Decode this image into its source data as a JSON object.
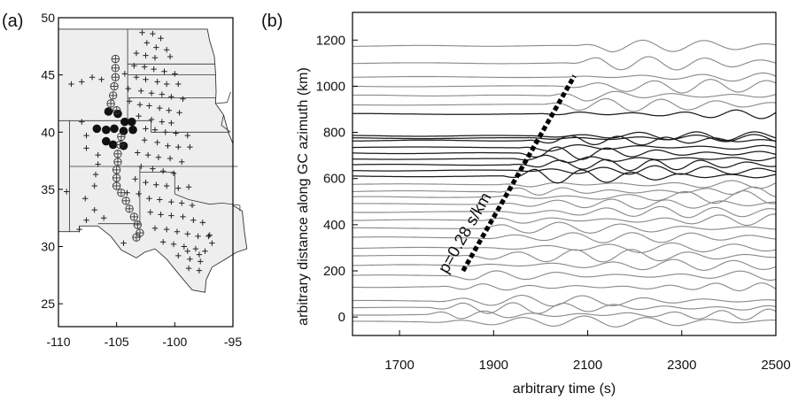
{
  "chart_data": [
    {
      "panel_label": "(a)",
      "type": "scatter",
      "xlim": [
        -110,
        -95
      ],
      "ylim": [
        23,
        50
      ],
      "x_ticks": [
        -110,
        -105,
        -100,
        -95
      ],
      "y_ticks": [
        25,
        30,
        35,
        40,
        45,
        50
      ],
      "tick_labels_x": [
        "-110",
        "-105",
        "-100",
        "-95"
      ],
      "tick_labels_y": [
        "25",
        "30",
        "35",
        "40",
        "45",
        "50"
      ],
      "colors": {
        "land": "#eeeeee",
        "border": "#333333",
        "marker": "#111111"
      },
      "series": [
        {
          "marker": "filled-circle",
          "points": [
            [
              -105.7,
              41.8
            ],
            [
              -104.9,
              41.6
            ],
            [
              -104.3,
              40.9
            ],
            [
              -103.7,
              40.9
            ],
            [
              -106.7,
              40.3
            ],
            [
              -105.9,
              40.2
            ],
            [
              -105.2,
              40.3
            ],
            [
              -104.4,
              40.1
            ],
            [
              -103.6,
              40.2
            ],
            [
              -105.9,
              39.2
            ],
            [
              -105.3,
              38.9
            ],
            [
              -104.4,
              38.8
            ]
          ]
        },
        {
          "marker": "circled-plus",
          "points": [
            [
              -105.1,
              46.4
            ],
            [
              -105.1,
              45.6
            ],
            [
              -105.1,
              44.8
            ],
            [
              -105.2,
              44.0
            ],
            [
              -105.3,
              43.2
            ],
            [
              -105.5,
              42.5
            ],
            [
              -105.0,
              41.9
            ],
            [
              -104.6,
              39.6
            ],
            [
              -104.7,
              38.9
            ],
            [
              -104.9,
              38.1
            ],
            [
              -104.9,
              37.4
            ],
            [
              -105.0,
              36.7
            ],
            [
              -105.0,
              36.0
            ],
            [
              -105.0,
              35.3
            ],
            [
              -104.6,
              34.7
            ],
            [
              -104.2,
              34.0
            ],
            [
              -103.9,
              33.3
            ],
            [
              -103.5,
              32.6
            ],
            [
              -103.2,
              31.9
            ],
            [
              -103.0,
              31.2
            ],
            [
              -103.3,
              30.8
            ]
          ]
        },
        {
          "marker": "plus",
          "points": [
            [
              -102.8,
              48.7
            ],
            [
              -101.9,
              48.6
            ],
            [
              -101.2,
              48.2
            ],
            [
              -102.4,
              47.8
            ],
            [
              -101.6,
              47.4
            ],
            [
              -100.7,
              47.2
            ],
            [
              -103.3,
              46.9
            ],
            [
              -102.5,
              46.7
            ],
            [
              -101.7,
              46.5
            ],
            [
              -100.4,
              46.6
            ],
            [
              -103.5,
              45.8
            ],
            [
              -102.6,
              45.7
            ],
            [
              -101.8,
              45.5
            ],
            [
              -100.9,
              45.3
            ],
            [
              -100.0,
              45.1
            ],
            [
              -104.3,
              45.1
            ],
            [
              -103.3,
              44.8
            ],
            [
              -102.5,
              44.6
            ],
            [
              -101.5,
              44.4
            ],
            [
              -100.7,
              44.2
            ],
            [
              -99.7,
              44.2
            ],
            [
              -104.0,
              43.8
            ],
            [
              -102.9,
              43.6
            ],
            [
              -102.0,
              43.4
            ],
            [
              -101.1,
              43.3
            ],
            [
              -100.3,
              43.1
            ],
            [
              -99.3,
              42.9
            ],
            [
              -103.9,
              42.7
            ],
            [
              -103.0,
              42.4
            ],
            [
              -102.2,
              42.3
            ],
            [
              -101.3,
              42.1
            ],
            [
              -100.5,
              41.9
            ],
            [
              -99.6,
              41.7
            ],
            [
              -103.1,
              41.4
            ],
            [
              -102.0,
              41.1
            ],
            [
              -101.1,
              40.9
            ],
            [
              -100.3,
              40.8
            ],
            [
              -102.5,
              40.3
            ],
            [
              -101.7,
              40.2
            ],
            [
              -100.8,
              40.0
            ],
            [
              -99.9,
              39.9
            ],
            [
              -98.9,
              39.7
            ],
            [
              -102.6,
              39.3
            ],
            [
              -101.5,
              39.1
            ],
            [
              -100.6,
              38.8
            ],
            [
              -99.7,
              38.7
            ],
            [
              -98.7,
              38.7
            ],
            [
              -103.2,
              38.2
            ],
            [
              -102.3,
              38.0
            ],
            [
              -101.4,
              37.8
            ],
            [
              -100.4,
              37.7
            ],
            [
              -99.4,
              37.4
            ],
            [
              -102.9,
              37.0
            ],
            [
              -101.9,
              36.8
            ],
            [
              -101.0,
              36.6
            ],
            [
              -100.1,
              36.4
            ],
            [
              -103.4,
              35.9
            ],
            [
              -102.5,
              35.6
            ],
            [
              -101.6,
              35.4
            ],
            [
              -100.7,
              35.3
            ],
            [
              -99.7,
              35.1
            ],
            [
              -98.8,
              35.2
            ],
            [
              -104.1,
              34.7
            ],
            [
              -103.1,
              34.6
            ],
            [
              -102.2,
              34.2
            ],
            [
              -101.3,
              34.1
            ],
            [
              -100.3,
              33.9
            ],
            [
              -99.4,
              33.8
            ],
            [
              -98.5,
              33.6
            ],
            [
              -102.1,
              33.0
            ],
            [
              -101.2,
              32.8
            ],
            [
              -100.3,
              32.7
            ],
            [
              -99.3,
              32.6
            ],
            [
              -98.4,
              32.3
            ],
            [
              -97.6,
              32.1
            ],
            [
              -101.7,
              31.6
            ],
            [
              -100.7,
              31.5
            ],
            [
              -99.8,
              31.3
            ],
            [
              -98.9,
              31.1
            ],
            [
              -98.0,
              30.9
            ],
            [
              -97.1,
              30.9
            ],
            [
              -101.0,
              30.4
            ],
            [
              -100.1,
              30.2
            ],
            [
              -99.2,
              30.0
            ],
            [
              -98.2,
              29.8
            ],
            [
              -97.4,
              29.6
            ],
            [
              -99.7,
              29.2
            ],
            [
              -98.7,
              28.9
            ],
            [
              -97.8,
              28.7
            ],
            [
              -98.8,
              28.1
            ],
            [
              -97.9,
              27.9
            ],
            [
              -108.9,
              44.2
            ],
            [
              -108.0,
              44.4
            ],
            [
              -107.1,
              44.8
            ],
            [
              -106.3,
              44.6
            ],
            [
              -108.0,
              40.9
            ],
            [
              -107.6,
              39.7
            ],
            [
              -107.6,
              38.6
            ],
            [
              -106.6,
              38.0
            ],
            [
              -106.6,
              37.2
            ],
            [
              -106.8,
              36.3
            ],
            [
              -106.9,
              35.3
            ],
            [
              -109.3,
              34.8
            ],
            [
              -107.7,
              34.2
            ],
            [
              -106.9,
              33.2
            ],
            [
              -106.1,
              32.5
            ],
            [
              -107.6,
              32.3
            ],
            [
              -108.2,
              31.5
            ],
            [
              -97.0,
              31.0
            ],
            [
              -96.8,
              30.3
            ],
            [
              -97.9,
              29.3
            ],
            [
              -98.9,
              29.6
            ],
            [
              -104.4,
              30.3
            ]
          ]
        }
      ]
    },
    {
      "panel_label": "(b)",
      "type": "line",
      "xlabel": "arbitrary time (s)",
      "ylabel": "arbitrary distance along GC azimuth (km)",
      "xlim": [
        1600,
        2500
      ],
      "ylim": [
        -80,
        1320
      ],
      "x_ticks": [
        1700,
        1900,
        2100,
        2300,
        2500
      ],
      "y_ticks": [
        0,
        200,
        400,
        600,
        800,
        1000,
        1200
      ],
      "tick_labels_x": [
        "1700",
        "1900",
        "2100",
        "2300",
        "2500"
      ],
      "tick_labels_y": [
        "0",
        "200",
        "400",
        "600",
        "800",
        "1000",
        "1200"
      ],
      "trace_distances_km": [
        -20,
        10,
        40,
        70,
        130,
        180,
        225,
        265,
        300,
        345,
        385,
        420,
        455,
        490,
        520,
        545,
        575,
        610,
        635,
        660,
        685,
        710,
        735,
        765,
        775,
        785,
        880,
        920,
        960,
        1000,
        1040,
        1100,
        1175
      ],
      "highlighted_traces_km": [
        610,
        635,
        660,
        685,
        710,
        735,
        765,
        775,
        785,
        880
      ],
      "colors": {
        "normal_trace": "#8c8c8c",
        "highlighted_trace": "#1a1a1a",
        "slowness_line": "#000000"
      },
      "annotation": {
        "text": "p=0.28 s/km",
        "line": {
          "t0": 1835,
          "d0": 200,
          "slowness_s_per_km": 0.28,
          "d1": 1045
        }
      }
    }
  ]
}
